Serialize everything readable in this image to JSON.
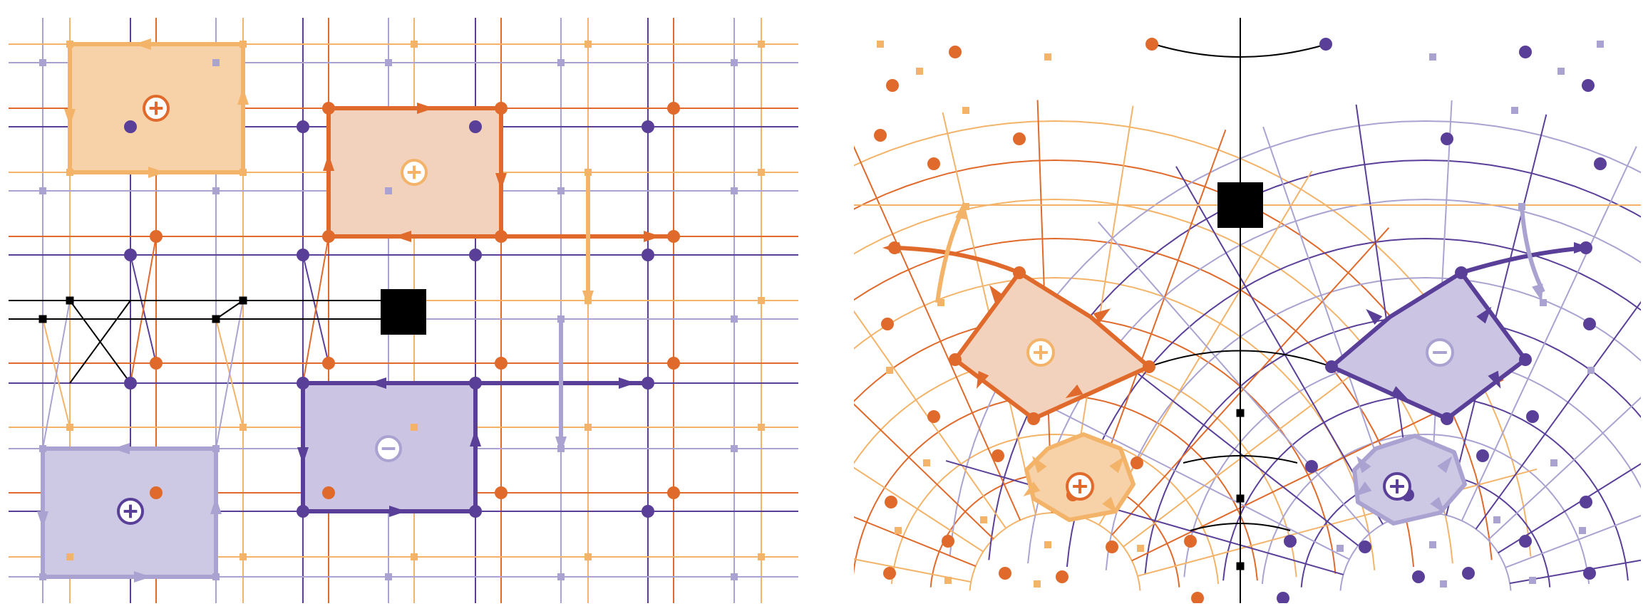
{
  "colors": {
    "orange_dark": "#e06a2b",
    "orange_light": "#f3b46a",
    "purple_dark": "#5a3f99",
    "purple_light": "#aaa3d1",
    "black": "#000000",
    "orange_fill": "#f2d1bd",
    "orange_light_fill": "#f7d2a8",
    "purple_fill": "#cbc4e2",
    "purple_light_fill": "#cdc9e4",
    "white": "#ffffff"
  },
  "panels": [
    {
      "id": "left",
      "name": "square-lattice-panel"
    },
    {
      "id": "right",
      "name": "curved-lattice-panel"
    }
  ],
  "left_panel": {
    "plaquettes": [
      {
        "name": "plaquette-light-orange-top-left",
        "charge": "+",
        "color": "orange_light"
      },
      {
        "name": "plaquette-dark-orange-center",
        "charge": "+",
        "color": "orange_dark"
      },
      {
        "name": "plaquette-dark-purple-center",
        "charge": "-",
        "color": "purple_dark"
      },
      {
        "name": "plaquette-light-purple-bottom-left",
        "charge": "+",
        "color": "purple_light"
      }
    ]
  },
  "right_panel": {
    "plaquettes": [
      {
        "name": "plaquette-dark-orange-curved",
        "charge": "+",
        "color": "orange_dark"
      },
      {
        "name": "plaquette-light-orange-curved",
        "charge": "+",
        "color": "orange_light"
      },
      {
        "name": "plaquette-dark-purple-curved",
        "charge": "-",
        "color": "purple_dark"
      },
      {
        "name": "plaquette-light-purple-curved",
        "charge": "+",
        "color": "purple_light"
      }
    ]
  },
  "symbols": {
    "plus": "+",
    "minus": "−"
  },
  "icons": [
    "plus-charge-icon",
    "minus-charge-icon",
    "defect-square-icon",
    "arrow-icon"
  ]
}
